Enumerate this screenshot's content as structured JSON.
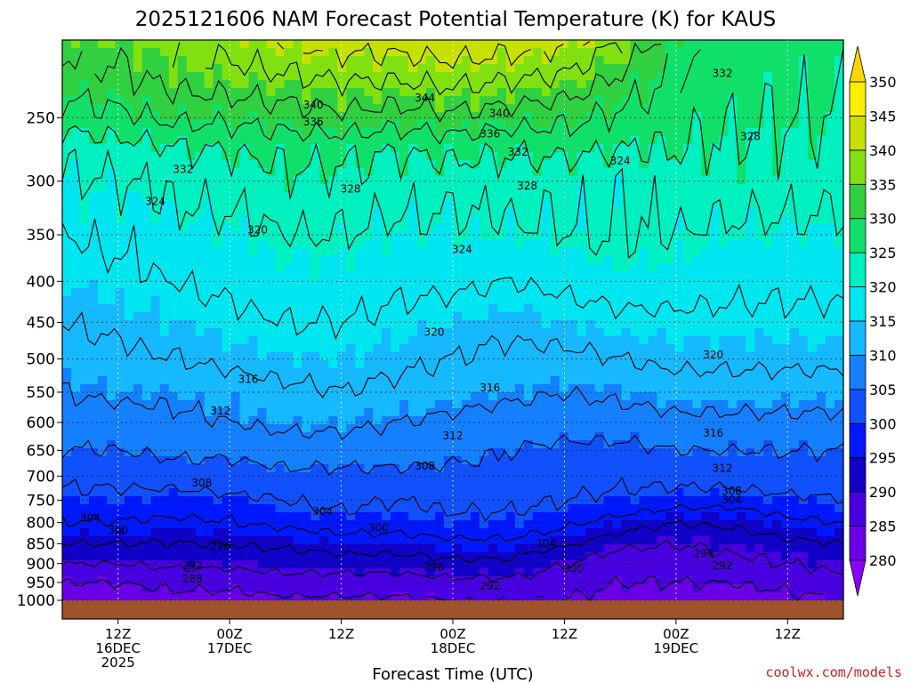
{
  "chart_data": {
    "type": "heatmap",
    "title": "2025121606 NAM Forecast Potential Temperature (K) for KAUS",
    "xlabel": "Forecast Time (UTC)",
    "ylabel": "",
    "units": "K",
    "y_ticks": [
      250,
      300,
      350,
      400,
      450,
      500,
      550,
      600,
      650,
      700,
      750,
      800,
      850,
      900,
      950,
      1000
    ],
    "y_range_hpa": [
      200,
      1000
    ],
    "x_range_hours": [
      0,
      84
    ],
    "x_ticks": [
      {
        "hour": 6,
        "lines": [
          "12Z",
          "16DEC",
          "2025"
        ]
      },
      {
        "hour": 18,
        "lines": [
          "00Z",
          "17DEC"
        ]
      },
      {
        "hour": 30,
        "lines": [
          "12Z"
        ]
      },
      {
        "hour": 42,
        "lines": [
          "00Z",
          "18DEC"
        ]
      },
      {
        "hour": 54,
        "lines": [
          "12Z"
        ]
      },
      {
        "hour": 66,
        "lines": [
          "00Z",
          "19DEC"
        ]
      },
      {
        "hour": 78,
        "lines": [
          "12Z"
        ]
      }
    ],
    "colorbar": {
      "levels": [
        280,
        285,
        290,
        295,
        300,
        305,
        310,
        315,
        320,
        325,
        330,
        335,
        340,
        345,
        350
      ],
      "colors": [
        "#8b00ff",
        "#6a00e6",
        "#4800e0",
        "#1000c8",
        "#0018ff",
        "#1050ff",
        "#1480ff",
        "#16b8ff",
        "#00e6f0",
        "#00f0c0",
        "#10e06a",
        "#30d040",
        "#80e010",
        "#c8e000",
        "#ffee00"
      ]
    },
    "ground_color": "#a0522d",
    "grid": true,
    "contour_interval": 4,
    "contour_labels": [
      {
        "hour": 10,
        "p": 318,
        "v": 324
      },
      {
        "hour": 27,
        "p": 241,
        "v": 340
      },
      {
        "hour": 27,
        "p": 253,
        "v": 336
      },
      {
        "hour": 13,
        "p": 290,
        "v": 332
      },
      {
        "hour": 21,
        "p": 345,
        "v": 320
      },
      {
        "hour": 39,
        "p": 236,
        "v": 344
      },
      {
        "hour": 47,
        "p": 247,
        "v": 340
      },
      {
        "hour": 46,
        "p": 262,
        "v": 336
      },
      {
        "hour": 49,
        "p": 276,
        "v": 332
      },
      {
        "hour": 31,
        "p": 307,
        "v": 328
      },
      {
        "hour": 50,
        "p": 304,
        "v": 328
      },
      {
        "hour": 43,
        "p": 365,
        "v": 324
      },
      {
        "hour": 60,
        "p": 283,
        "v": 324
      },
      {
        "hour": 71,
        "p": 220,
        "v": 332
      },
      {
        "hour": 74,
        "p": 264,
        "v": 328
      },
      {
        "hour": 40,
        "p": 463,
        "v": 320
      },
      {
        "hour": 70,
        "p": 494,
        "v": 320
      },
      {
        "hour": 20,
        "p": 530,
        "v": 316
      },
      {
        "hour": 46,
        "p": 543,
        "v": 316
      },
      {
        "hour": 70,
        "p": 619,
        "v": 316
      },
      {
        "hour": 17,
        "p": 580,
        "v": 312
      },
      {
        "hour": 42,
        "p": 623,
        "v": 312
      },
      {
        "hour": 71,
        "p": 684,
        "v": 312
      },
      {
        "hour": 15,
        "p": 714,
        "v": 308
      },
      {
        "hour": 39,
        "p": 680,
        "v": 308
      },
      {
        "hour": 72,
        "p": 730,
        "v": 308
      },
      {
        "hour": 72,
        "p": 749,
        "v": 304
      },
      {
        "hour": 3,
        "p": 790,
        "v": 304
      },
      {
        "hour": 28,
        "p": 775,
        "v": 304
      },
      {
        "hour": 52,
        "p": 849,
        "v": 304
      },
      {
        "hour": 6,
        "p": 817,
        "v": 300
      },
      {
        "hour": 34,
        "p": 812,
        "v": 300
      },
      {
        "hour": 55,
        "p": 913,
        "v": 300
      },
      {
        "hour": 17,
        "p": 857,
        "v": 296
      },
      {
        "hour": 40,
        "p": 909,
        "v": 296
      },
      {
        "hour": 69,
        "p": 874,
        "v": 296
      },
      {
        "hour": 14,
        "p": 905,
        "v": 292
      },
      {
        "hour": 46,
        "p": 960,
        "v": 292
      },
      {
        "hour": 71,
        "p": 905,
        "v": 292
      },
      {
        "hour": 14,
        "p": 940,
        "v": 288
      }
    ],
    "profile": {
      "levels_hpa": [
        1000,
        975,
        950,
        925,
        900,
        875,
        850,
        825,
        800,
        775,
        750,
        725,
        700,
        650,
        600,
        550,
        500,
        450,
        400,
        350,
        300,
        275,
        250,
        225,
        200
      ],
      "times_hour": [
        0,
        6,
        12,
        18,
        24,
        30,
        36,
        42,
        48,
        54,
        60,
        66,
        72,
        78,
        84
      ],
      "values_k": [
        [
          287,
          287,
          288,
          288,
          289,
          289,
          289,
          290,
          290,
          290,
          288,
          288,
          288,
          289,
          290
        ],
        [
          288,
          289,
          290,
          290,
          291,
          291,
          291,
          292,
          292,
          291,
          289,
          289,
          289,
          290,
          291
        ],
        [
          290,
          290,
          291,
          291,
          292,
          292,
          292,
          293,
          293,
          292,
          290,
          290,
          290,
          291,
          292
        ],
        [
          292,
          292,
          293,
          293,
          294,
          294,
          294,
          295,
          295,
          293,
          291,
          291,
          292,
          293,
          294
        ],
        [
          294,
          294,
          295,
          295,
          296,
          296,
          296,
          297,
          297,
          294,
          292,
          292,
          293,
          294,
          295
        ],
        [
          296,
          296,
          296,
          297,
          297,
          298,
          298,
          299,
          299,
          296,
          293,
          293,
          294,
          295,
          297
        ],
        [
          298,
          298,
          298,
          298,
          299,
          300,
          300,
          301,
          301,
          299,
          295,
          294,
          295,
          297,
          298
        ],
        [
          300,
          300,
          299,
          300,
          301,
          302,
          302,
          303,
          303,
          301,
          298,
          296,
          297,
          299,
          300
        ],
        [
          302,
          302,
          301,
          302,
          303,
          304,
          304,
          305,
          305,
          303,
          300,
          298,
          299,
          301,
          302
        ],
        [
          303,
          303,
          303,
          303,
          305,
          306,
          305,
          306,
          306,
          305,
          303,
          301,
          301,
          303,
          304
        ],
        [
          305,
          305,
          304,
          305,
          306,
          307,
          306,
          307,
          307,
          306,
          305,
          304,
          304,
          305,
          306
        ],
        [
          306,
          306,
          306,
          307,
          307,
          308,
          307,
          308,
          308,
          307,
          306,
          306,
          306,
          307,
          307
        ],
        [
          307,
          307,
          308,
          308,
          309,
          309,
          309,
          309,
          309,
          308,
          307,
          307,
          307,
          308,
          308
        ],
        [
          310,
          310,
          311,
          311,
          312,
          312,
          312,
          311,
          310,
          309,
          309,
          310,
          310,
          310,
          310
        ],
        [
          312,
          312,
          313,
          314,
          315,
          315,
          314,
          313,
          312,
          312,
          312,
          313,
          313,
          313,
          313
        ],
        [
          314,
          315,
          315,
          316,
          317,
          318,
          317,
          316,
          315,
          314,
          315,
          316,
          316,
          316,
          316
        ],
        [
          316,
          317,
          318,
          319,
          320,
          320,
          319,
          318,
          317,
          317,
          318,
          319,
          319,
          319,
          319
        ],
        [
          318,
          319,
          320,
          321,
          322,
          322,
          321,
          320,
          319,
          320,
          321,
          321,
          321,
          321,
          321
        ],
        [
          320,
          321,
          322,
          323,
          324,
          324,
          323,
          323,
          322,
          323,
          324,
          324,
          323,
          323,
          323
        ],
        [
          322,
          323,
          324,
          325,
          326,
          326,
          325,
          325,
          325,
          326,
          327,
          326,
          325,
          325,
          325
        ],
        [
          325,
          326,
          327,
          328,
          329,
          329,
          328,
          328,
          328,
          327,
          326,
          328,
          328,
          328,
          328
        ],
        [
          327,
          328,
          329,
          330,
          331,
          331,
          330,
          331,
          330,
          331,
          330,
          330,
          329,
          329,
          329
        ],
        [
          332,
          333,
          335,
          335,
          336,
          337,
          336,
          337,
          336,
          335,
          333,
          331,
          330,
          330,
          330
        ],
        [
          336,
          337,
          339,
          340,
          341,
          342,
          342,
          343,
          342,
          341,
          337,
          333,
          332,
          331,
          331
        ],
        [
          339,
          340,
          342,
          344,
          346,
          348,
          348,
          349,
          348,
          347,
          342,
          335,
          333,
          332,
          332
        ]
      ]
    }
  },
  "credit": "coolwx.com/models"
}
